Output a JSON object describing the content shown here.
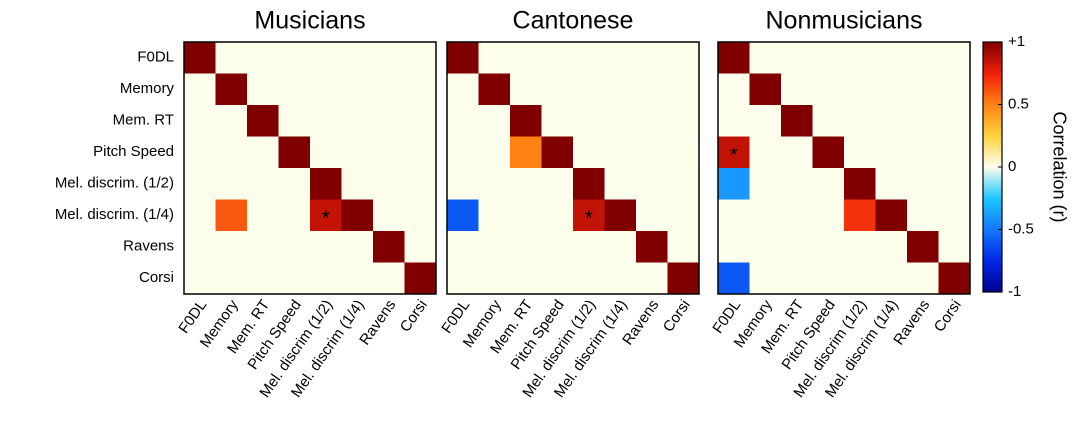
{
  "chart_data": [
    {
      "type": "heatmap",
      "title": "Musicians",
      "y_categories": [
        "F0DL",
        "Memory",
        "Mem. RT",
        "Pitch Speed",
        "Mel. discrim. (1/2)",
        "Mel. discrim. (1/4)",
        "Ravens",
        "Corsi"
      ],
      "x_categories": [
        "F0DL",
        "Memory",
        "Mem. RT",
        "Pitch Speed",
        "Mel. discrim (1/2)",
        "Mel. discrim (1/4)",
        "Ravens",
        "Corsi"
      ],
      "values": [
        [
          1,
          0,
          0,
          0,
          0,
          0,
          0,
          0
        ],
        [
          0,
          1,
          0,
          0,
          0,
          0,
          0,
          0
        ],
        [
          0,
          0,
          1,
          0,
          0,
          0,
          0,
          0
        ],
        [
          0,
          0,
          0,
          1,
          0,
          0,
          0,
          0
        ],
        [
          0,
          0,
          0,
          0,
          1,
          0,
          0,
          0
        ],
        [
          0,
          0.6,
          0,
          0,
          0.85,
          1,
          0,
          0
        ],
        [
          0,
          0,
          0,
          0,
          0,
          0,
          1,
          0
        ],
        [
          0,
          0,
          0,
          0,
          0,
          0,
          0,
          1
        ]
      ],
      "zlim": [
        -1,
        1
      ],
      "star_label": "*",
      "stars": [
        [
          5,
          4
        ]
      ]
    },
    {
      "type": "heatmap",
      "title": "Cantonese",
      "x_categories": [
        "F0DL",
        "Memory",
        "Mem. RT",
        "Pitch Speed",
        "Mel. discrim (1/2)",
        "Mel. discrim (1/4)",
        "Ravens",
        "Corsi"
      ],
      "values": [
        [
          1,
          0,
          0,
          0,
          0,
          0,
          0,
          0
        ],
        [
          0,
          1,
          0,
          0,
          0,
          0,
          0,
          0
        ],
        [
          0,
          0,
          1,
          0,
          0,
          0,
          0,
          0
        ],
        [
          0,
          0,
          0.5,
          1,
          0,
          0,
          0,
          0
        ],
        [
          0,
          0,
          0,
          0,
          1,
          0,
          0,
          0
        ],
        [
          -0.6,
          0,
          0,
          0,
          0.85,
          1,
          0,
          0
        ],
        [
          0,
          0,
          0,
          0,
          0,
          0,
          1,
          0
        ],
        [
          0,
          0,
          0,
          0,
          0,
          0,
          0,
          1
        ]
      ],
      "zlim": [
        -1,
        1
      ],
      "star_label": "*",
      "stars": [
        [
          5,
          4
        ]
      ]
    },
    {
      "type": "heatmap",
      "title": "Nonmusicians",
      "x_categories": [
        "F0DL",
        "Memory",
        "Mem. RT",
        "Pitch Speed",
        "Mel. discrim (1/2)",
        "Mel. discrim (1/4)",
        "Ravens",
        "Corsi"
      ],
      "values": [
        [
          1,
          0,
          0,
          0,
          0,
          0,
          0,
          0
        ],
        [
          0,
          1,
          0,
          0,
          0,
          0,
          0,
          0
        ],
        [
          0,
          0,
          1,
          0,
          0,
          0,
          0,
          0
        ],
        [
          0.85,
          0,
          0,
          1,
          0,
          0,
          0,
          0
        ],
        [
          -0.4,
          0,
          0,
          0,
          1,
          0,
          0,
          0
        ],
        [
          0,
          0,
          0,
          0,
          0.7,
          1,
          0,
          0
        ],
        [
          0,
          0,
          0,
          0,
          0,
          0,
          1,
          0
        ],
        [
          -0.6,
          0,
          0,
          0,
          0,
          0,
          0,
          1
        ]
      ],
      "zlim": [
        -1,
        1
      ],
      "star_label": "*",
      "stars": [
        [
          3,
          0
        ]
      ],
      "colorbar": {
        "label": "Correlation (r)",
        "zlim": [
          -1,
          1
        ],
        "zticks": [
          {
            "value": 1,
            "label": "+1"
          },
          0.5,
          0,
          -0.5,
          -1
        ]
      }
    }
  ]
}
